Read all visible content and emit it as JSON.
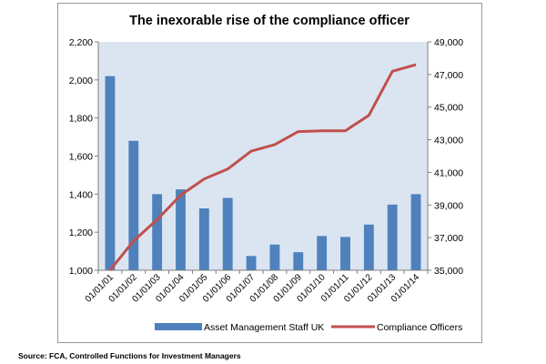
{
  "source_note": "Source: FCA, Controlled Functions for Investment Managers",
  "colors": {
    "plot_background": "#dbe5f1",
    "bar": "#4f81bd",
    "line": "#c0504d"
  },
  "chart_data": {
    "type": "bar",
    "title": "The inexorable rise of the compliance officer",
    "categories": [
      "01/01/01",
      "01/01/02",
      "01/01/03",
      "01/01/04",
      "01/01/05",
      "01/01/06",
      "01/01/07",
      "01/01/08",
      "01/01/09",
      "01/01/10",
      "01/01/11",
      "01/01/12",
      "01/01/13",
      "01/01/14"
    ],
    "series": [
      {
        "name": "Asset Management Staff UK",
        "type": "bar",
        "axis": "left",
        "values": [
          2020,
          1680,
          1400,
          1425,
          1325,
          1380,
          1075,
          1135,
          1095,
          1180,
          1175,
          1240,
          1345,
          1400
        ]
      },
      {
        "name": "Compliance Officers",
        "type": "line",
        "axis": "right",
        "values": [
          35000,
          36800,
          38100,
          39600,
          40600,
          41200,
          42300,
          42700,
          43500,
          43550,
          43550,
          44500,
          47200,
          47600
        ]
      }
    ],
    "y_left": {
      "ylim": [
        1000,
        2200
      ],
      "ticks": [
        1000,
        1200,
        1400,
        1600,
        1800,
        2000,
        2200
      ],
      "tick_labels": [
        "1,000",
        "1,200",
        "1,400",
        "1,600",
        "1,800",
        "2,000",
        "2,200"
      ]
    },
    "y_right": {
      "ylim": [
        35000,
        49000
      ],
      "ticks": [
        35000,
        37000,
        39000,
        41000,
        43000,
        45000,
        47000,
        49000
      ],
      "tick_labels": [
        "35,000",
        "37,000",
        "39,000",
        "41,000",
        "43,000",
        "45,000",
        "47,000",
        "49,000"
      ]
    },
    "grid": false,
    "legend": "bottom"
  }
}
